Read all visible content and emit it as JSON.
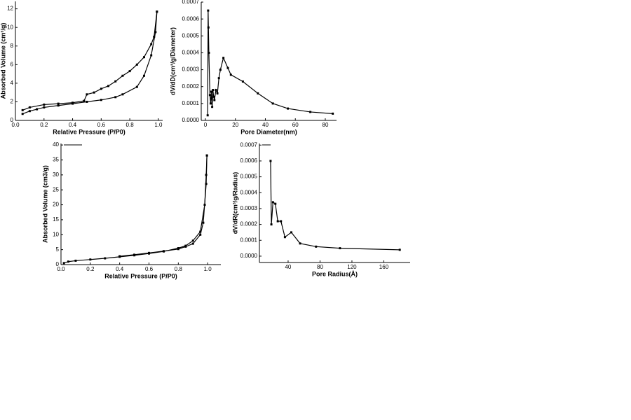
{
  "chart_data": [
    {
      "type": "line",
      "x_label": "Relative Pressure (P/P0)",
      "y_label": "Absorbed Volume (cm³/g)",
      "xlim": [
        0,
        1.03
      ],
      "ylim": [
        0,
        12.8
      ],
      "xticks": [
        {
          "value": 0,
          "label": "0.0"
        },
        0.2,
        0.4,
        0.6,
        0.8,
        {
          "value": 1,
          "label": "1.0"
        }
      ],
      "yticks": [
        0,
        2,
        4,
        6,
        8,
        10,
        12
      ],
      "series": [
        {
          "color": "#000000",
          "x": [
            0.05,
            0.1,
            0.15,
            0.2,
            0.3,
            0.4,
            0.5,
            0.6,
            0.7,
            0.75,
            0.85,
            0.9,
            0.95,
            0.98,
            0.99
          ],
          "values": [
            0.7,
            1.0,
            1.2,
            1.4,
            1.6,
            1.8,
            2.0,
            2.2,
            2.5,
            2.8,
            3.6,
            4.8,
            7.0,
            9.5,
            11.7
          ]
        },
        {
          "color": "#000000",
          "x": [
            0.99,
            0.97,
            0.95,
            0.9,
            0.85,
            0.8,
            0.75,
            0.7,
            0.65,
            0.6,
            0.55,
            0.5,
            0.48,
            0.4,
            0.3,
            0.2,
            0.1,
            0.05
          ],
          "values": [
            11.7,
            9.0,
            8.2,
            6.8,
            6.0,
            5.3,
            4.8,
            4.2,
            3.7,
            3.4,
            3.0,
            2.8,
            2.1,
            1.9,
            1.8,
            1.7,
            1.4,
            1.1
          ]
        }
      ]
    },
    {
      "type": "line",
      "x_label": "Pore Diameter(nm)",
      "y_label": "dV/dD(cm³/g/Diameter)",
      "xlim": [
        -2.8,
        87.5
      ],
      "ylim": [
        0,
        0.0007
      ],
      "xticks": [
        0,
        20,
        40,
        60,
        80
      ],
      "yticks": [
        {
          "value": 0,
          "label": "0.0000"
        },
        {
          "value": 0.0001,
          "label": "0.0001"
        },
        {
          "value": 0.0002,
          "label": "0.0002"
        },
        {
          "value": 0.0003,
          "label": "0.0003"
        },
        {
          "value": 0.0004,
          "label": "0.0004"
        },
        {
          "value": 0.0005,
          "label": "0.0005"
        },
        {
          "value": 0.0006,
          "label": "0.0006"
        },
        {
          "value": 0.0007,
          "label": "0.0007"
        }
      ],
      "series": [
        {
          "color": "#000000",
          "x": [
            1.5,
            1.8,
            2,
            2.3,
            3,
            3.5,
            4,
            4.5,
            5,
            5.5,
            6,
            7,
            8,
            9,
            10,
            12,
            15,
            17,
            25,
            35,
            45,
            55,
            70,
            85
          ],
          "values": [
            3e-05,
            0.00065,
            0.00055,
            0.0004,
            0.00015,
            0.0001,
            0.00017,
            8e-05,
            0.00018,
            0.00014,
            0.00012,
            0.00018,
            0.00016,
            0.00025,
            0.0003,
            0.00037,
            0.00031,
            0.00027,
            0.00023,
            0.00016,
            0.0001,
            7e-05,
            5e-05,
            4e-05
          ]
        }
      ]
    },
    {
      "type": "line",
      "x_label": "Relative Pressure (P/P0)",
      "y_label": "Absorbed Volume (cm3/g)",
      "xlim": [
        0,
        1.09
      ],
      "ylim": [
        0,
        40.5
      ],
      "xticks": [
        {
          "value": 0,
          "label": "0.0"
        },
        0.2,
        0.4,
        0.6,
        0.8,
        {
          "value": 1,
          "label": "1.0"
        }
      ],
      "yticks": [
        0,
        5,
        10,
        15,
        20,
        25,
        30,
        35,
        40
      ],
      "series": [
        {
          "color": "#000000",
          "x": [
            0.02,
            0.05,
            0.1,
            0.2,
            0.3,
            0.4,
            0.5,
            0.6,
            0.7,
            0.8,
            0.85,
            0.9,
            0.95,
            0.98,
            0.99,
            0.995
          ],
          "values": [
            0.5,
            1.0,
            1.3,
            1.7,
            2.1,
            2.6,
            3.1,
            3.7,
            4.4,
            5.5,
            6.3,
            8.0,
            11,
            20,
            30,
            36.5
          ]
        },
        {
          "color": "#000000",
          "x": [
            0.995,
            0.99,
            0.97,
            0.95,
            0.9,
            0.85,
            0.8,
            0.7,
            0.6,
            0.5,
            0.4
          ],
          "values": [
            36.5,
            27,
            14,
            10,
            7,
            6,
            5.2,
            4.5,
            3.9,
            3.3,
            2.8
          ]
        }
      ]
    },
    {
      "type": "line",
      "x_label": "Pore Radius(Å)",
      "y_label": "dV/dR(cm³/g/Radius)",
      "xlim": [
        4,
        193
      ],
      "ylim": [
        -4e-05,
        0.00071
      ],
      "xticks": [
        40,
        80,
        120,
        160
      ],
      "yticks": [
        {
          "value": 0,
          "label": "0.0000"
        },
        {
          "value": 0.0001,
          "label": "0.0001"
        },
        {
          "value": 0.0002,
          "label": "0.0002"
        },
        {
          "value": 0.0003,
          "label": "0.0003"
        },
        {
          "value": 0.0004,
          "label": "0.0004"
        },
        {
          "value": 0.0005,
          "label": "0.0005"
        },
        {
          "value": 0.0006,
          "label": "0.0006"
        },
        {
          "value": 0.0007,
          "label": "0.0007"
        }
      ],
      "series": [
        {
          "color": "#000000",
          "x": [
            18,
            19,
            21,
            24,
            27,
            31,
            36,
            44,
            55,
            75,
            105,
            180
          ],
          "values": [
            0.0006,
            0.0002,
            0.00034,
            0.00033,
            0.00022,
            0.00022,
            0.00012,
            0.00015,
            8e-05,
            6e-05,
            5e-05,
            4e-05
          ]
        }
      ]
    }
  ]
}
